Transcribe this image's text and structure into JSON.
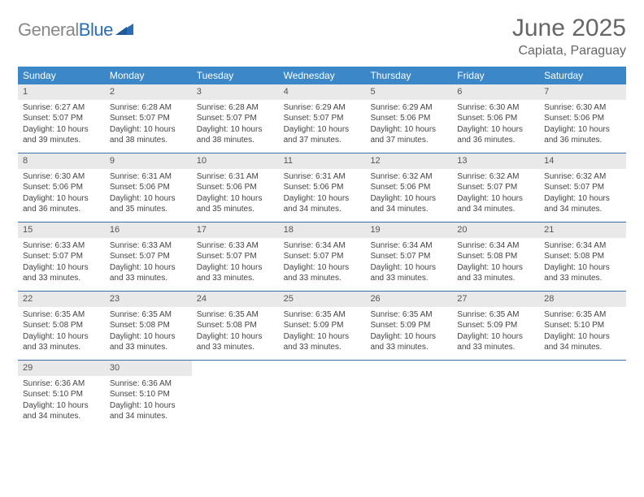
{
  "logo": {
    "part1": "General",
    "part2": "Blue"
  },
  "title": "June 2025",
  "location": "Capiata, Paraguay",
  "headers": [
    "Sunday",
    "Monday",
    "Tuesday",
    "Wednesday",
    "Thursday",
    "Friday",
    "Saturday"
  ],
  "colors": {
    "header_bg": "#3b87c8",
    "header_text": "#ffffff",
    "row_border": "#3b6fa8",
    "daynum_bg": "#e9e9e9",
    "logo_gray": "#888888",
    "logo_blue": "#2a6db5",
    "title_color": "#666666"
  },
  "weeks": [
    [
      {
        "n": "1",
        "sr": "Sunrise: 6:27 AM",
        "ss": "Sunset: 5:07 PM",
        "dl": "Daylight: 10 hours and 39 minutes."
      },
      {
        "n": "2",
        "sr": "Sunrise: 6:28 AM",
        "ss": "Sunset: 5:07 PM",
        "dl": "Daylight: 10 hours and 38 minutes."
      },
      {
        "n": "3",
        "sr": "Sunrise: 6:28 AM",
        "ss": "Sunset: 5:07 PM",
        "dl": "Daylight: 10 hours and 38 minutes."
      },
      {
        "n": "4",
        "sr": "Sunrise: 6:29 AM",
        "ss": "Sunset: 5:07 PM",
        "dl": "Daylight: 10 hours and 37 minutes."
      },
      {
        "n": "5",
        "sr": "Sunrise: 6:29 AM",
        "ss": "Sunset: 5:06 PM",
        "dl": "Daylight: 10 hours and 37 minutes."
      },
      {
        "n": "6",
        "sr": "Sunrise: 6:30 AM",
        "ss": "Sunset: 5:06 PM",
        "dl": "Daylight: 10 hours and 36 minutes."
      },
      {
        "n": "7",
        "sr": "Sunrise: 6:30 AM",
        "ss": "Sunset: 5:06 PM",
        "dl": "Daylight: 10 hours and 36 minutes."
      }
    ],
    [
      {
        "n": "8",
        "sr": "Sunrise: 6:30 AM",
        "ss": "Sunset: 5:06 PM",
        "dl": "Daylight: 10 hours and 36 minutes."
      },
      {
        "n": "9",
        "sr": "Sunrise: 6:31 AM",
        "ss": "Sunset: 5:06 PM",
        "dl": "Daylight: 10 hours and 35 minutes."
      },
      {
        "n": "10",
        "sr": "Sunrise: 6:31 AM",
        "ss": "Sunset: 5:06 PM",
        "dl": "Daylight: 10 hours and 35 minutes."
      },
      {
        "n": "11",
        "sr": "Sunrise: 6:31 AM",
        "ss": "Sunset: 5:06 PM",
        "dl": "Daylight: 10 hours and 34 minutes."
      },
      {
        "n": "12",
        "sr": "Sunrise: 6:32 AM",
        "ss": "Sunset: 5:06 PM",
        "dl": "Daylight: 10 hours and 34 minutes."
      },
      {
        "n": "13",
        "sr": "Sunrise: 6:32 AM",
        "ss": "Sunset: 5:07 PM",
        "dl": "Daylight: 10 hours and 34 minutes."
      },
      {
        "n": "14",
        "sr": "Sunrise: 6:32 AM",
        "ss": "Sunset: 5:07 PM",
        "dl": "Daylight: 10 hours and 34 minutes."
      }
    ],
    [
      {
        "n": "15",
        "sr": "Sunrise: 6:33 AM",
        "ss": "Sunset: 5:07 PM",
        "dl": "Daylight: 10 hours and 33 minutes."
      },
      {
        "n": "16",
        "sr": "Sunrise: 6:33 AM",
        "ss": "Sunset: 5:07 PM",
        "dl": "Daylight: 10 hours and 33 minutes."
      },
      {
        "n": "17",
        "sr": "Sunrise: 6:33 AM",
        "ss": "Sunset: 5:07 PM",
        "dl": "Daylight: 10 hours and 33 minutes."
      },
      {
        "n": "18",
        "sr": "Sunrise: 6:34 AM",
        "ss": "Sunset: 5:07 PM",
        "dl": "Daylight: 10 hours and 33 minutes."
      },
      {
        "n": "19",
        "sr": "Sunrise: 6:34 AM",
        "ss": "Sunset: 5:07 PM",
        "dl": "Daylight: 10 hours and 33 minutes."
      },
      {
        "n": "20",
        "sr": "Sunrise: 6:34 AM",
        "ss": "Sunset: 5:08 PM",
        "dl": "Daylight: 10 hours and 33 minutes."
      },
      {
        "n": "21",
        "sr": "Sunrise: 6:34 AM",
        "ss": "Sunset: 5:08 PM",
        "dl": "Daylight: 10 hours and 33 minutes."
      }
    ],
    [
      {
        "n": "22",
        "sr": "Sunrise: 6:35 AM",
        "ss": "Sunset: 5:08 PM",
        "dl": "Daylight: 10 hours and 33 minutes."
      },
      {
        "n": "23",
        "sr": "Sunrise: 6:35 AM",
        "ss": "Sunset: 5:08 PM",
        "dl": "Daylight: 10 hours and 33 minutes."
      },
      {
        "n": "24",
        "sr": "Sunrise: 6:35 AM",
        "ss": "Sunset: 5:08 PM",
        "dl": "Daylight: 10 hours and 33 minutes."
      },
      {
        "n": "25",
        "sr": "Sunrise: 6:35 AM",
        "ss": "Sunset: 5:09 PM",
        "dl": "Daylight: 10 hours and 33 minutes."
      },
      {
        "n": "26",
        "sr": "Sunrise: 6:35 AM",
        "ss": "Sunset: 5:09 PM",
        "dl": "Daylight: 10 hours and 33 minutes."
      },
      {
        "n": "27",
        "sr": "Sunrise: 6:35 AM",
        "ss": "Sunset: 5:09 PM",
        "dl": "Daylight: 10 hours and 33 minutes."
      },
      {
        "n": "28",
        "sr": "Sunrise: 6:35 AM",
        "ss": "Sunset: 5:10 PM",
        "dl": "Daylight: 10 hours and 34 minutes."
      }
    ],
    [
      {
        "n": "29",
        "sr": "Sunrise: 6:36 AM",
        "ss": "Sunset: 5:10 PM",
        "dl": "Daylight: 10 hours and 34 minutes."
      },
      {
        "n": "30",
        "sr": "Sunrise: 6:36 AM",
        "ss": "Sunset: 5:10 PM",
        "dl": "Daylight: 10 hours and 34 minutes."
      },
      {
        "empty": true
      },
      {
        "empty": true
      },
      {
        "empty": true
      },
      {
        "empty": true
      },
      {
        "empty": true
      }
    ]
  ]
}
